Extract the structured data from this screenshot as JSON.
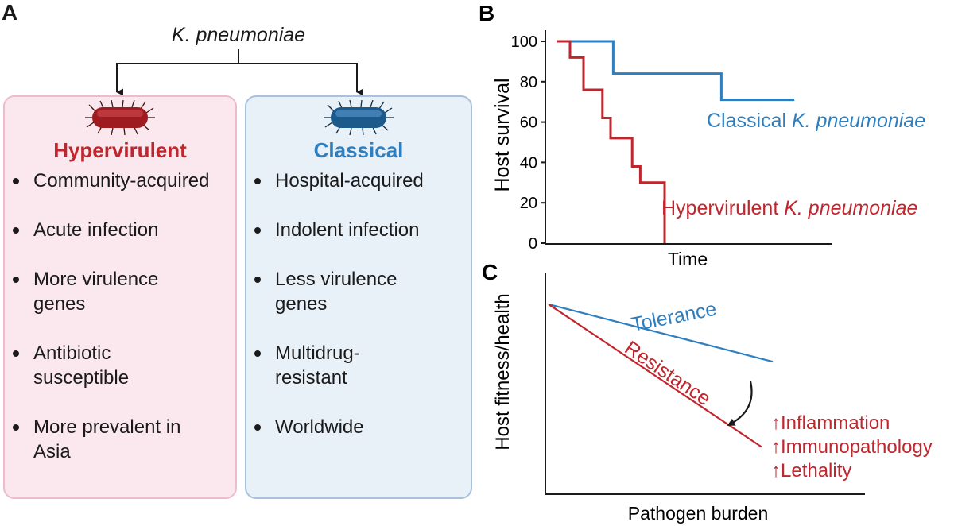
{
  "panel_a": {
    "letter": "A",
    "title": "K. pneumoniae",
    "hypervirulent": {
      "heading": "Hypervirulent",
      "items": [
        "Community-acquired",
        "Acute infection",
        "More virulence genes",
        "Antibiotic susceptible",
        "More prevalent in Asia"
      ]
    },
    "classical": {
      "heading": "Classical",
      "items": [
        "Hospital-acquired",
        "Indolent infection",
        "Less virulence genes",
        "Multidrug-resistant",
        "Worldwide"
      ]
    },
    "colors": {
      "hypervirulent": "#c0262d",
      "classical": "#2f7fbf"
    }
  },
  "panel_b": {
    "letter": "B",
    "chart_data": {
      "type": "line",
      "step": true,
      "xlabel": "Time",
      "ylabel": "Host survival",
      "ylim": [
        0,
        100
      ],
      "yticks": [
        0,
        20,
        40,
        60,
        80,
        100
      ],
      "xlim": [
        0,
        10
      ],
      "series": [
        {
          "name": "Classical K. pneumoniae",
          "color": "#2f7fbf",
          "x": [
            0,
            2.1,
            2.1,
            6.1,
            6.1,
            8.8
          ],
          "y": [
            100,
            100,
            84,
            84,
            71,
            71
          ]
        },
        {
          "name": "Hypervirulent K. pneumoniae",
          "color": "#c0262d",
          "x": [
            0,
            0.5,
            0.5,
            1.0,
            1.0,
            1.7,
            1.7,
            2.0,
            2.0,
            2.8,
            2.8,
            3.1,
            3.1,
            4.0,
            4.0
          ],
          "y": [
            100,
            100,
            92,
            92,
            76,
            76,
            62,
            62,
            52,
            52,
            38,
            38,
            30,
            30,
            0
          ]
        }
      ],
      "labels": {
        "classical_prefix": "Classical ",
        "hyper_prefix": "Hypervirulent ",
        "species": "K. pneumoniae"
      }
    }
  },
  "panel_c": {
    "letter": "C",
    "chart_data": {
      "type": "line",
      "xlabel": "Pathogen burden",
      "ylabel": "Host fitness/health",
      "series": [
        {
          "name": "Tolerance",
          "color": "#2f7fbf",
          "x": [
            0,
            1
          ],
          "y": [
            0.86,
            0.6
          ]
        },
        {
          "name": "Resistance",
          "color": "#c0262d",
          "x": [
            0,
            1
          ],
          "y": [
            0.86,
            0.18
          ]
        }
      ],
      "annotations": [
        "Inflammation",
        "Immunopathology",
        "Lethality"
      ],
      "arrow_glyph": "↑"
    }
  }
}
